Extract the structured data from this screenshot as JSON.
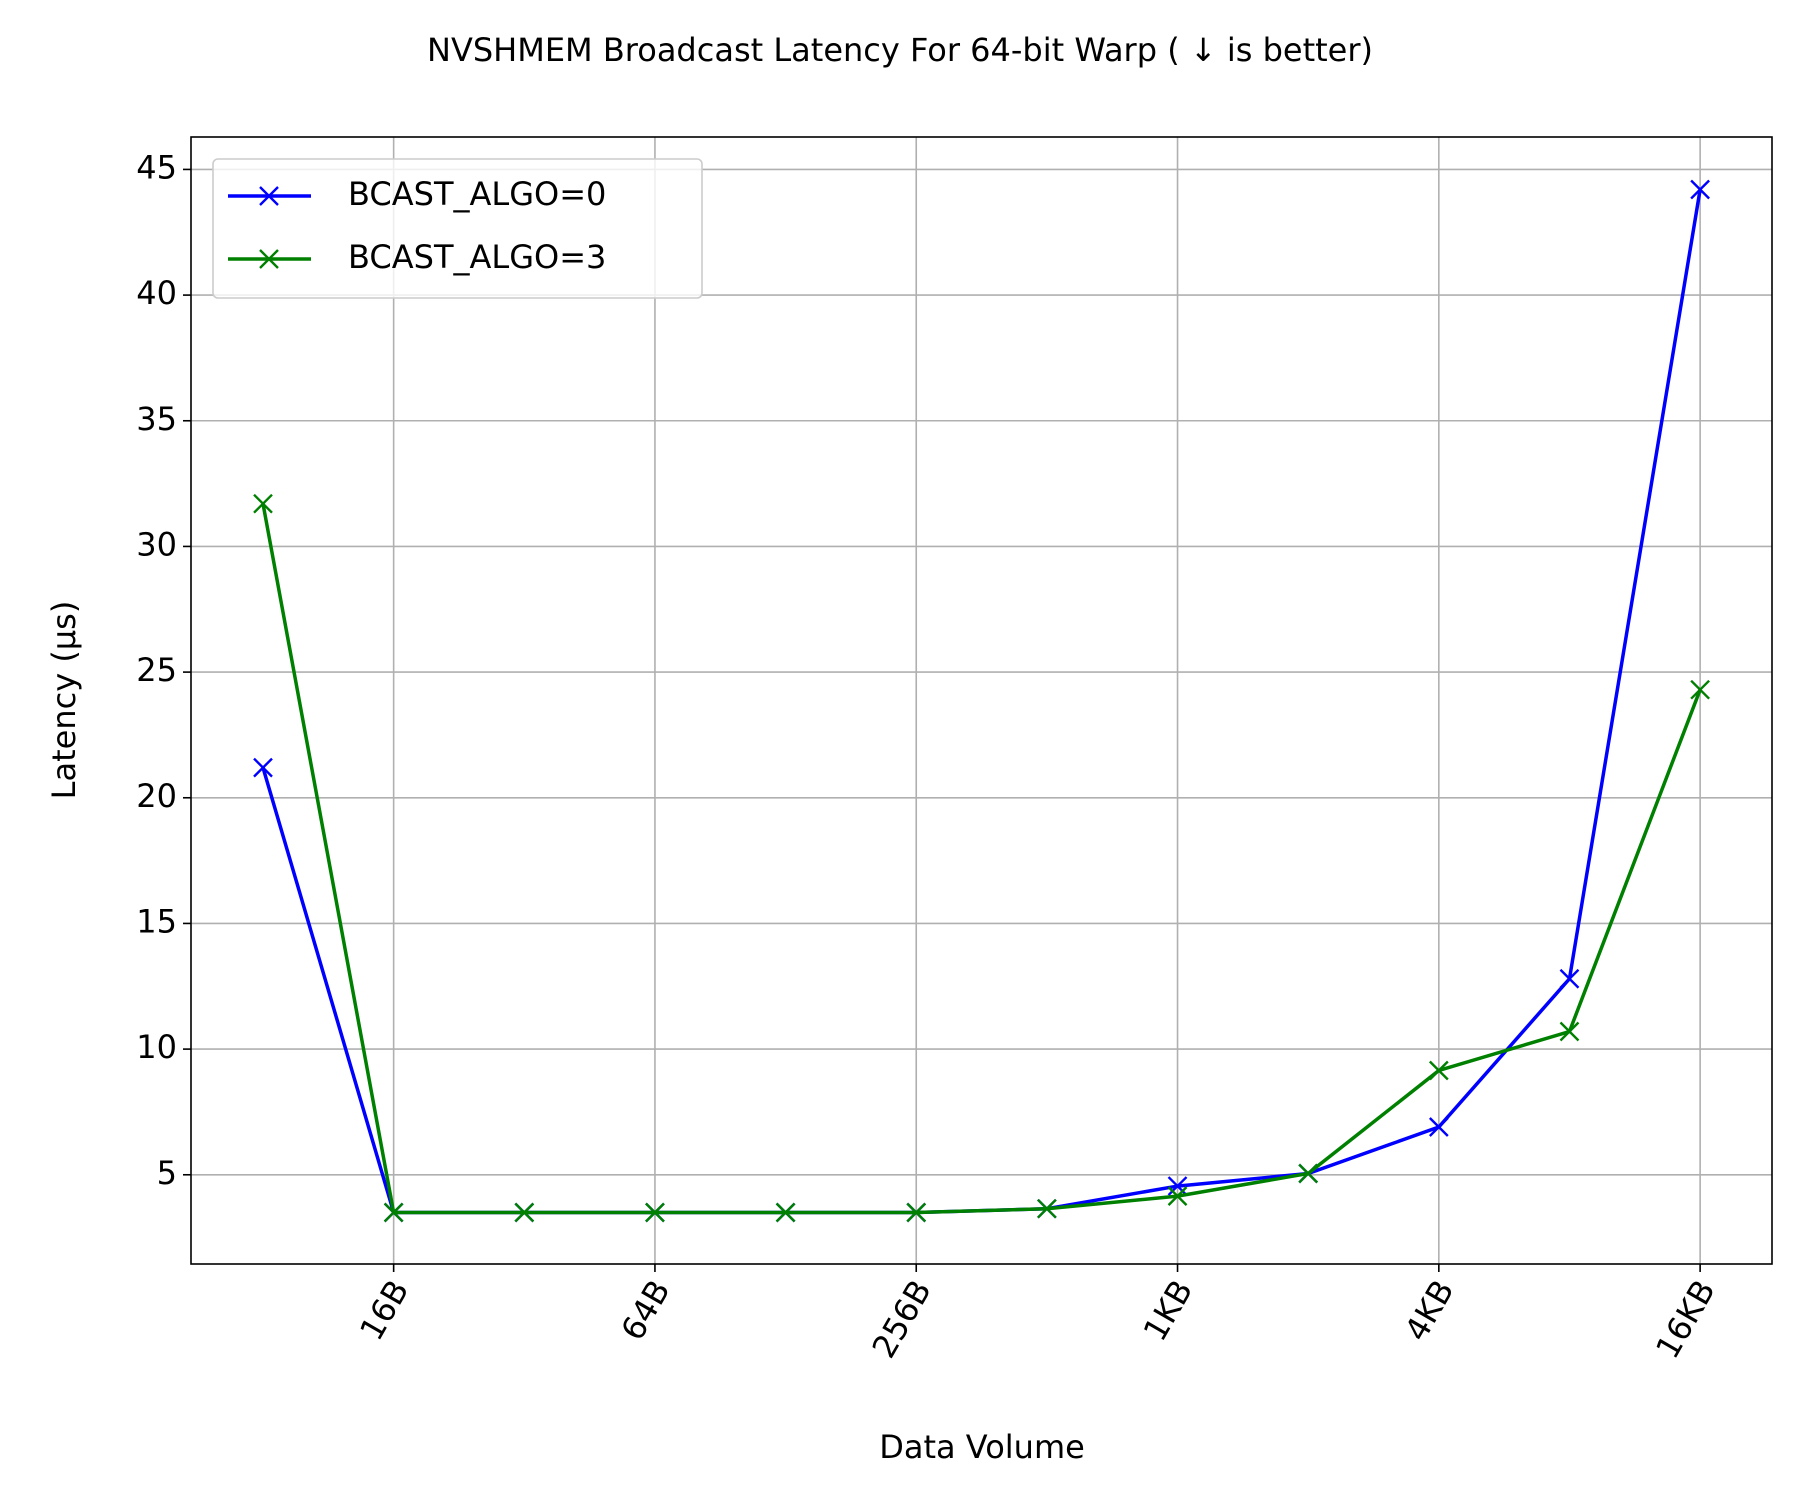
{
  "chart_data": {
    "type": "line",
    "title": "NVSHMEM Broadcast Latency For 64-bit Warp ( ↓  is better)",
    "xlabel": "Data Volume",
    "ylabel": "Latency (μs)",
    "x": [
      8,
      16,
      32,
      64,
      128,
      256,
      512,
      1024,
      2048,
      4096,
      8192,
      16384
    ],
    "xscale": "log2",
    "xlim": [
      5.46,
      23990
    ],
    "xticks": [
      {
        "value": 16,
        "label": "16B"
      },
      {
        "value": 64,
        "label": "64B"
      },
      {
        "value": 256,
        "label": "256B"
      },
      {
        "value": 1024,
        "label": "1KB"
      },
      {
        "value": 4096,
        "label": "4KB"
      },
      {
        "value": 16384,
        "label": "16KB"
      }
    ],
    "ylim": [
      1.45,
      46.29
    ],
    "yticks": [
      5,
      10,
      15,
      20,
      25,
      30,
      35,
      40,
      45
    ],
    "grid": true,
    "legend": "upper left",
    "series": [
      {
        "name": "BCAST_ALGO=0",
        "color": "#0000ff",
        "values": [
          21.2,
          3.5,
          3.5,
          3.5,
          3.5,
          3.5,
          3.65,
          4.55,
          5.05,
          6.9,
          12.8,
          44.2
        ]
      },
      {
        "name": "BCAST_ALGO=3",
        "color": "#008000",
        "values": [
          31.7,
          3.5,
          3.5,
          3.5,
          3.5,
          3.5,
          3.65,
          4.15,
          5.05,
          9.15,
          10.7,
          24.3
        ]
      }
    ]
  }
}
